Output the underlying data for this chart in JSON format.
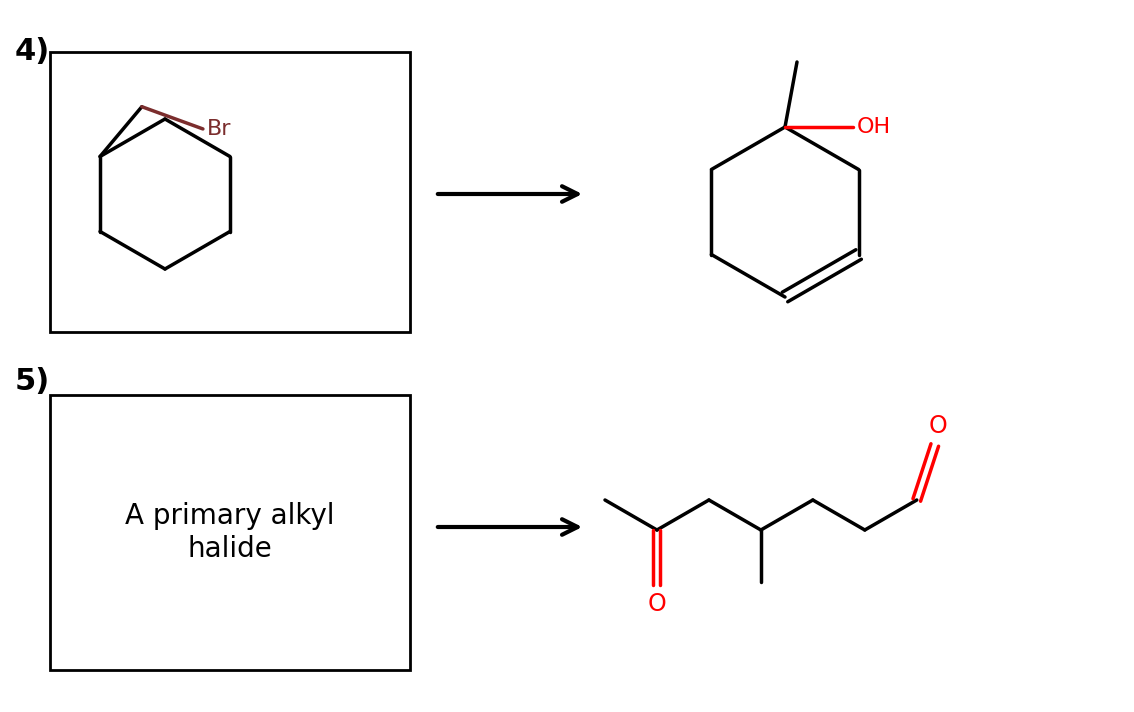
{
  "bg_color": "#ffffff",
  "label_color": "#000000",
  "bond_color": "#000000",
  "br_color": "#7B2D2D",
  "oh_color": "#ff0000",
  "o_color": "#ff0000",
  "label4": "4)",
  "label5": "5)",
  "text5": "A primary alkyl\nhalide",
  "font_size_label": 22,
  "font_size_text": 20,
  "lw": 2.5
}
